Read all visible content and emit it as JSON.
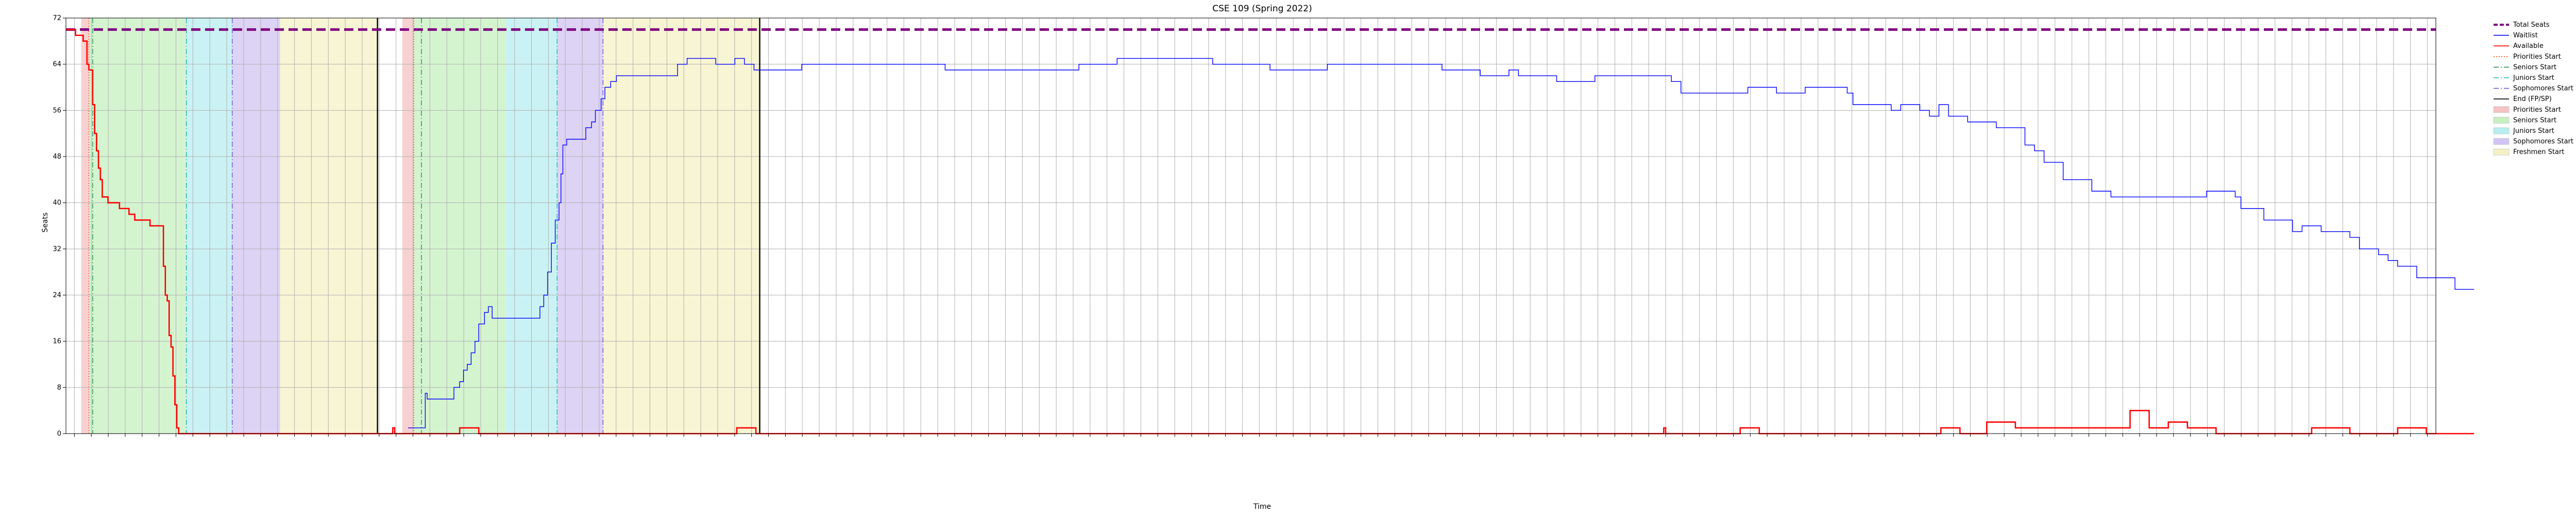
{
  "chart_data": {
    "type": "line",
    "title": "CSE 109 (Spring 2022)",
    "xlabel": "Time",
    "ylabel": "Seats",
    "ylim": [
      0,
      72
    ],
    "y_ticks": [
      0,
      8,
      16,
      24,
      32,
      40,
      48,
      56,
      64,
      72
    ],
    "grid": true,
    "legend_placement": "outside-right",
    "x_axis": "date (evenly spaced date tick labels, 2021-11-10 to 2022-04-08, rotated)",
    "x_tick_count": 140,
    "x_tick_labels_note": "Dense rotated date-time labels; not individually legible in the screenshot",
    "legend": [
      {
        "label": "Total Seats",
        "kind": "line",
        "color": "#800080",
        "style": "dashed-thick"
      },
      {
        "label": "Waitlist",
        "kind": "line",
        "color": "#0000ff",
        "style": "solid"
      },
      {
        "label": "Available",
        "kind": "line",
        "color": "#ff0000",
        "style": "solid"
      },
      {
        "label": "Priorities Start",
        "kind": "line",
        "color": "#ff4500",
        "style": "dotted"
      },
      {
        "label": "Seniors Start",
        "kind": "line",
        "color": "#2e8b57",
        "style": "dashdot"
      },
      {
        "label": "Juniors Start",
        "kind": "line",
        "color": "#20b2aa",
        "style": "dashdot"
      },
      {
        "label": "Sophomores Start",
        "kind": "line",
        "color": "#6a5acd",
        "style": "dashdot"
      },
      {
        "label": "End (FP/SP)",
        "kind": "line",
        "color": "#000000",
        "style": "solid"
      },
      {
        "label": "Priorities Start",
        "kind": "patch",
        "color": "#f4c2c2"
      },
      {
        "label": "Seniors Start",
        "kind": "patch",
        "color": "#c6f0c0"
      },
      {
        "label": "Juniors Start",
        "kind": "patch",
        "color": "#b8eef0"
      },
      {
        "label": "Sophomores Start",
        "kind": "patch",
        "color": "#d2c4f2"
      },
      {
        "label": "Freshmen Start",
        "kind": "patch",
        "color": "#f4f2c4"
      }
    ],
    "series": [
      {
        "name": "Total Seats",
        "color": "#800080",
        "points": [
          [
            0,
            70
          ],
          [
            1,
            70
          ]
        ]
      },
      {
        "name": "Waitlist",
        "color": "#0000ff",
        "points": [
          [
            0.179,
            1
          ],
          [
            0.186,
            1
          ],
          [
            0.188,
            7
          ],
          [
            0.189,
            6
          ],
          [
            0.199,
            6
          ],
          [
            0.203,
            8
          ],
          [
            0.206,
            9
          ],
          [
            0.208,
            11
          ],
          [
            0.21,
            12
          ],
          [
            0.212,
            14
          ],
          [
            0.214,
            16
          ],
          [
            0.216,
            19
          ],
          [
            0.219,
            21
          ],
          [
            0.221,
            22
          ],
          [
            0.223,
            20
          ],
          [
            0.245,
            20
          ],
          [
            0.248,
            22
          ],
          [
            0.25,
            24
          ],
          [
            0.252,
            28
          ],
          [
            0.254,
            33
          ],
          [
            0.256,
            37
          ],
          [
            0.258,
            40
          ],
          [
            0.259,
            45
          ],
          [
            0.26,
            50
          ],
          [
            0.262,
            51
          ],
          [
            0.265,
            51
          ],
          [
            0.27,
            51
          ],
          [
            0.272,
            53
          ],
          [
            0.275,
            54
          ],
          [
            0.277,
            56
          ],
          [
            0.28,
            58
          ],
          [
            0.282,
            60
          ],
          [
            0.285,
            61
          ],
          [
            0.288,
            62
          ],
          [
            0.3,
            62
          ],
          [
            0.315,
            62
          ],
          [
            0.32,
            64
          ],
          [
            0.325,
            65
          ],
          [
            0.335,
            65
          ],
          [
            0.34,
            64
          ],
          [
            0.345,
            64
          ],
          [
            0.35,
            65
          ],
          [
            0.355,
            64
          ],
          [
            0.36,
            63
          ],
          [
            0.38,
            63
          ],
          [
            0.385,
            64
          ],
          [
            0.45,
            64
          ],
          [
            0.46,
            63
          ],
          [
            0.52,
            63
          ],
          [
            0.53,
            64
          ],
          [
            0.545,
            64
          ],
          [
            0.55,
            65
          ],
          [
            0.59,
            65
          ],
          [
            0.6,
            64
          ],
          [
            0.62,
            64
          ],
          [
            0.63,
            63
          ],
          [
            0.65,
            63
          ],
          [
            0.66,
            64
          ],
          [
            0.68,
            64
          ],
          [
            0.69,
            64
          ],
          [
            0.71,
            64
          ],
          [
            0.72,
            63
          ],
          [
            0.73,
            63
          ],
          [
            0.74,
            62
          ],
          [
            0.75,
            62
          ],
          [
            0.755,
            63
          ],
          [
            0.76,
            62
          ],
          [
            0.78,
            61
          ],
          [
            0.79,
            61
          ],
          [
            0.8,
            62
          ],
          [
            0.82,
            62
          ],
          [
            0.835,
            62
          ],
          [
            0.84,
            61
          ],
          [
            0.845,
            59
          ],
          [
            0.86,
            59
          ],
          [
            0.87,
            59
          ],
          [
            0.88,
            60
          ],
          [
            0.895,
            59
          ],
          [
            0.905,
            59
          ],
          [
            0.91,
            60
          ],
          [
            0.925,
            60
          ],
          [
            0.932,
            59
          ],
          [
            0.935,
            57
          ],
          [
            0.95,
            57
          ],
          [
            0.955,
            56
          ],
          [
            0.96,
            57
          ],
          [
            0.97,
            56
          ],
          [
            0.975,
            55
          ],
          [
            0.98,
            57
          ],
          [
            0.985,
            55
          ],
          [
            0.99,
            55
          ],
          [
            0.995,
            54
          ],
          [
            1.005,
            54
          ],
          [
            1.01,
            53
          ],
          [
            1.02,
            53
          ],
          [
            1.025,
            50
          ],
          [
            1.03,
            49
          ],
          [
            1.035,
            47
          ],
          [
            1.042,
            47
          ],
          [
            1.045,
            44
          ],
          [
            1.055,
            44
          ],
          [
            1.06,
            42
          ],
          [
            1.07,
            41
          ],
          [
            1.08,
            41
          ],
          [
            1.105,
            41
          ],
          [
            1.11,
            41
          ],
          [
            1.12,
            42
          ],
          [
            1.13,
            42
          ],
          [
            1.135,
            41
          ],
          [
            1.138,
            39
          ],
          [
            1.145,
            39
          ],
          [
            1.15,
            37
          ],
          [
            1.16,
            37
          ],
          [
            1.165,
            35
          ],
          [
            1.17,
            36
          ],
          [
            1.18,
            35
          ],
          [
            1.19,
            35
          ],
          [
            1.195,
            34
          ],
          [
            1.2,
            32
          ],
          [
            1.21,
            31
          ],
          [
            1.215,
            30
          ],
          [
            1.22,
            29
          ],
          [
            1.225,
            29
          ],
          [
            1.23,
            27
          ],
          [
            1.245,
            27
          ],
          [
            1.25,
            25
          ],
          [
            1.26,
            25
          ]
        ]
      },
      {
        "name": "Available",
        "color": "#ff0000",
        "points": [
          [
            0.0,
            70
          ],
          [
            0.004,
            70
          ],
          [
            0.005,
            69
          ],
          [
            0.008,
            69
          ],
          [
            0.009,
            68
          ],
          [
            0.01,
            68
          ],
          [
            0.011,
            64
          ],
          [
            0.012,
            63
          ],
          [
            0.013,
            63
          ],
          [
            0.014,
            57
          ],
          [
            0.015,
            52
          ],
          [
            0.016,
            49
          ],
          [
            0.017,
            46
          ],
          [
            0.018,
            44
          ],
          [
            0.019,
            41
          ],
          [
            0.021,
            41
          ],
          [
            0.022,
            40
          ],
          [
            0.027,
            40
          ],
          [
            0.028,
            39
          ],
          [
            0.032,
            39
          ],
          [
            0.033,
            38
          ],
          [
            0.035,
            38
          ],
          [
            0.036,
            37
          ],
          [
            0.043,
            37
          ],
          [
            0.044,
            36
          ],
          [
            0.05,
            36
          ],
          [
            0.051,
            29
          ],
          [
            0.052,
            24
          ],
          [
            0.053,
            23
          ],
          [
            0.054,
            17
          ],
          [
            0.055,
            15
          ],
          [
            0.056,
            10
          ],
          [
            0.057,
            5
          ],
          [
            0.058,
            1
          ],
          [
            0.059,
            0
          ],
          [
            0.17,
            0
          ],
          [
            0.171,
            1
          ],
          [
            0.172,
            0
          ],
          [
            0.205,
            0
          ],
          [
            0.206,
            1
          ],
          [
            0.215,
            1
          ],
          [
            0.216,
            0
          ],
          [
            0.35,
            0
          ],
          [
            0.351,
            1
          ],
          [
            0.36,
            1
          ],
          [
            0.361,
            0
          ],
          [
            0.835,
            0
          ],
          [
            0.836,
            1
          ],
          [
            0.837,
            0
          ],
          [
            0.875,
            0
          ],
          [
            0.876,
            1
          ],
          [
            0.885,
            1
          ],
          [
            0.886,
            0
          ],
          [
            0.98,
            0
          ],
          [
            0.981,
            1
          ],
          [
            0.99,
            1
          ],
          [
            0.991,
            0
          ],
          [
            1.0,
            0
          ],
          [
            1.005,
            2
          ],
          [
            1.015,
            2
          ],
          [
            1.02,
            1
          ],
          [
            1.075,
            1
          ],
          [
            1.08,
            4
          ],
          [
            1.085,
            4
          ],
          [
            1.09,
            1
          ],
          [
            1.095,
            1
          ],
          [
            1.1,
            2
          ],
          [
            1.105,
            2
          ],
          [
            1.11,
            1
          ],
          [
            1.12,
            1
          ],
          [
            1.125,
            0
          ],
          [
            1.17,
            0
          ],
          [
            1.175,
            1
          ],
          [
            1.19,
            1
          ],
          [
            1.195,
            0
          ],
          [
            1.215,
            0
          ],
          [
            1.22,
            1
          ],
          [
            1.23,
            1
          ],
          [
            1.235,
            0
          ],
          [
            1.26,
            0
          ]
        ]
      }
    ],
    "vertical_markers": [
      {
        "name": "Priorities Start",
        "color": "#ff4500",
        "x": [
          0.012,
          0.182
        ]
      },
      {
        "name": "Seniors Start",
        "color": "#2e8b57",
        "x": [
          0.014,
          0.186
        ]
      },
      {
        "name": "Juniors Start",
        "color": "#20b2aa",
        "x": [
          0.063,
          0.257
        ]
      },
      {
        "name": "Sophomores Start",
        "color": "#6a5acd",
        "x": [
          0.087,
          0.281
        ]
      },
      {
        "name": "End (FP/SP)",
        "color": "#000000",
        "x": [
          0.163,
          0.363
        ]
      }
    ],
    "shaded_regions": [
      {
        "name": "Priorities Start",
        "color": "#f4c2c2",
        "ranges": [
          [
            0.008,
            0.012
          ],
          [
            0.176,
            0.182
          ]
        ]
      },
      {
        "name": "Seniors Start",
        "color": "#c6f0c0",
        "ranges": [
          [
            0.012,
            0.063
          ],
          [
            0.182,
            0.23
          ]
        ]
      },
      {
        "name": "Juniors Start",
        "color": "#b8eef0",
        "ranges": [
          [
            0.063,
            0.087
          ],
          [
            0.23,
            0.257
          ]
        ]
      },
      {
        "name": "Sophomores Start",
        "color": "#d2c4f2",
        "ranges": [
          [
            0.087,
            0.112
          ],
          [
            0.257,
            0.281
          ]
        ]
      },
      {
        "name": "Freshmen Start",
        "color": "#f4f2c4",
        "ranges": [
          [
            0.112,
            0.163
          ],
          [
            0.281,
            0.363
          ]
        ]
      }
    ]
  }
}
